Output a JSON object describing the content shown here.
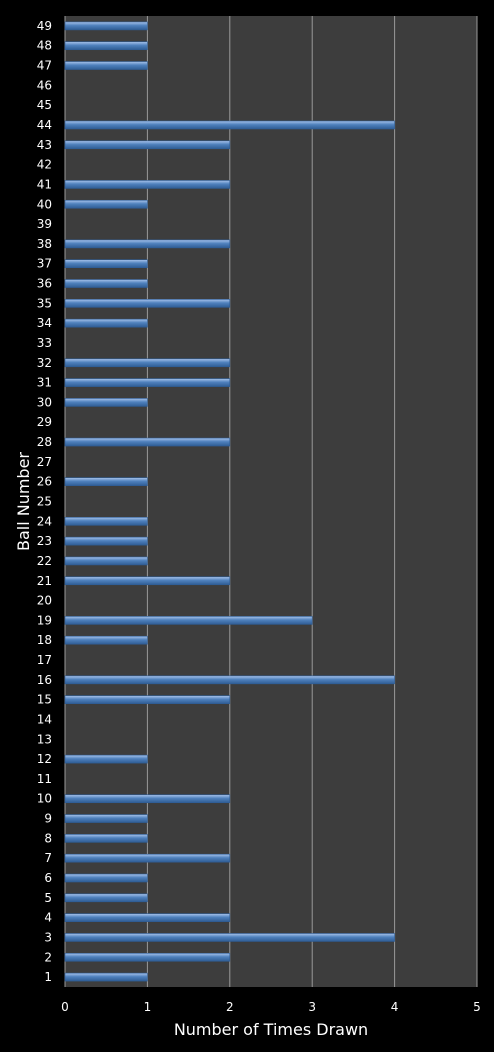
{
  "chart_data": {
    "type": "bar",
    "orientation": "horizontal",
    "xlabel": "Number of Times Drawn",
    "ylabel": "Ball Number",
    "xlim": [
      0,
      5
    ],
    "xticks": [
      "0",
      "1",
      "2",
      "3",
      "4",
      "5"
    ],
    "grid": true,
    "colors": {
      "figure_bg": "#000000",
      "plot_bg": "#3d3d3d",
      "bar": "#4f81bd",
      "bar_light": "#a9c4ec",
      "bar_dark": "#2f5d95",
      "grid": "#9a9a9a",
      "text": "#ffffff"
    },
    "categories": [
      "1",
      "2",
      "3",
      "4",
      "5",
      "6",
      "7",
      "8",
      "9",
      "10",
      "11",
      "12",
      "13",
      "14",
      "15",
      "16",
      "17",
      "18",
      "19",
      "20",
      "21",
      "22",
      "23",
      "24",
      "25",
      "26",
      "27",
      "28",
      "29",
      "30",
      "31",
      "32",
      "33",
      "34",
      "35",
      "36",
      "37",
      "38",
      "39",
      "40",
      "41",
      "42",
      "43",
      "44",
      "45",
      "46",
      "47",
      "48",
      "49"
    ],
    "values": [
      1,
      2,
      4,
      2,
      1,
      1,
      2,
      1,
      1,
      2,
      0,
      1,
      0,
      0,
      2,
      4,
      0,
      1,
      3,
      0,
      2,
      1,
      1,
      1,
      0,
      1,
      0,
      2,
      0,
      1,
      2,
      2,
      0,
      1,
      2,
      1,
      1,
      2,
      0,
      1,
      2,
      0,
      2,
      4,
      0,
      0,
      1,
      1,
      1
    ]
  }
}
